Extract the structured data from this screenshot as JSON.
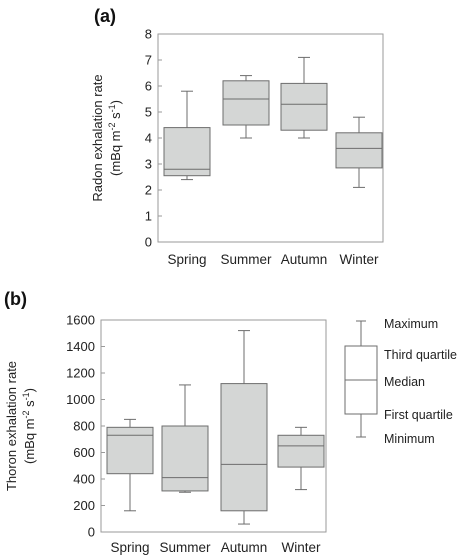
{
  "chart_data": [
    {
      "panel": "(a)",
      "type": "boxplot",
      "ylabel_line1": "Radon exhalation rate",
      "ylabel_line2": "(mBq m-2 s-1)",
      "ylim": [
        0,
        8
      ],
      "yticks": [
        "0",
        "1",
        "2",
        "3",
        "4",
        "5",
        "6",
        "7",
        "8"
      ],
      "categories": [
        "Spring",
        "Summer",
        "Autumn",
        "Winter"
      ],
      "boxes": [
        {
          "min": 2.4,
          "q1": 2.55,
          "median": 2.8,
          "q3": 4.4,
          "max": 5.8
        },
        {
          "min": 4.0,
          "q1": 4.5,
          "median": 5.5,
          "q3": 6.2,
          "max": 6.4
        },
        {
          "min": 4.0,
          "q1": 4.3,
          "median": 5.3,
          "q3": 6.1,
          "max": 7.1
        },
        {
          "min": 2.1,
          "q1": 2.85,
          "median": 3.6,
          "q3": 4.2,
          "max": 4.8
        }
      ],
      "grid": false
    },
    {
      "panel": "(b)",
      "type": "boxplot",
      "ylabel_line1": "Thoron exhalation rate",
      "ylabel_line2": "(mBq m-2 s-1)",
      "ylim": [
        0,
        1600
      ],
      "yticks": [
        "0",
        "200",
        "400",
        "600",
        "800",
        "1000",
        "1200",
        "1400",
        "1600"
      ],
      "categories": [
        "Spring",
        "Summer",
        "Autumn",
        "Winter"
      ],
      "boxes": [
        {
          "min": 160,
          "q1": 440,
          "median": 730,
          "q3": 790,
          "max": 850
        },
        {
          "min": 300,
          "q1": 310,
          "median": 410,
          "q3": 800,
          "max": 1110
        },
        {
          "min": 60,
          "q1": 160,
          "median": 510,
          "q3": 1120,
          "max": 1520
        },
        {
          "min": 320,
          "q1": 490,
          "median": 650,
          "q3": 730,
          "max": 790
        }
      ],
      "grid": false
    }
  ],
  "legend": {
    "maximum": "Maximum",
    "third_quartile": "Third quartile",
    "median": "Median",
    "first_quartile": "First quartile",
    "minimum": "Minimum"
  },
  "colors": {
    "box_fill": "#d4d6d5",
    "line": "#6d6d6d",
    "axis": "#9a9a9a"
  }
}
